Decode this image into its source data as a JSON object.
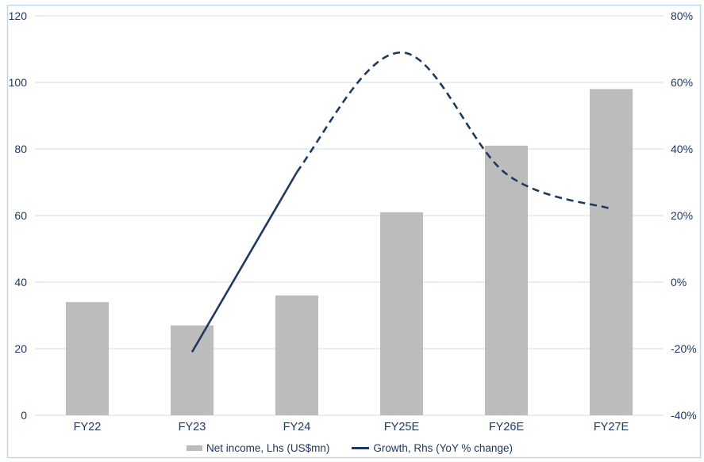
{
  "chart_data": {
    "type": "combo",
    "title": "",
    "categories": [
      "FY22",
      "FY23",
      "FY24",
      "FY25E",
      "FY26E",
      "FY27E"
    ],
    "series": [
      {
        "name": "Net income, Lhs (US$mn)",
        "type": "bar",
        "axis": "left",
        "values": [
          34,
          27,
          36,
          61,
          81,
          98
        ]
      },
      {
        "name": "Growth, Rhs (YoY % change)",
        "type": "line",
        "axis": "right",
        "values": [
          null,
          -21,
          33,
          69,
          32.5,
          22
        ],
        "line_style": "solid from FY23 to FY24, dashed (estimates) from FY24 to FY27E",
        "smoothed": true
      }
    ],
    "left_axis": {
      "min": 0,
      "max": 120,
      "step": 20,
      "tick_labels": [
        "0",
        "20",
        "40",
        "60",
        "80",
        "100",
        "120"
      ]
    },
    "right_axis": {
      "min": -40,
      "max": 80,
      "step": 20,
      "tick_labels": [
        "-40%",
        "-20%",
        "0%",
        "20%",
        "40%",
        "60%",
        "80%"
      ]
    },
    "grid": true,
    "legend_position": "bottom",
    "colors": {
      "bar": "#bcbcbc",
      "line": "#1f3864",
      "text": "#1f3864",
      "gridline": "#dbe8f6",
      "frame_border": "#bdd7ee",
      "background": "#ffffff"
    }
  }
}
